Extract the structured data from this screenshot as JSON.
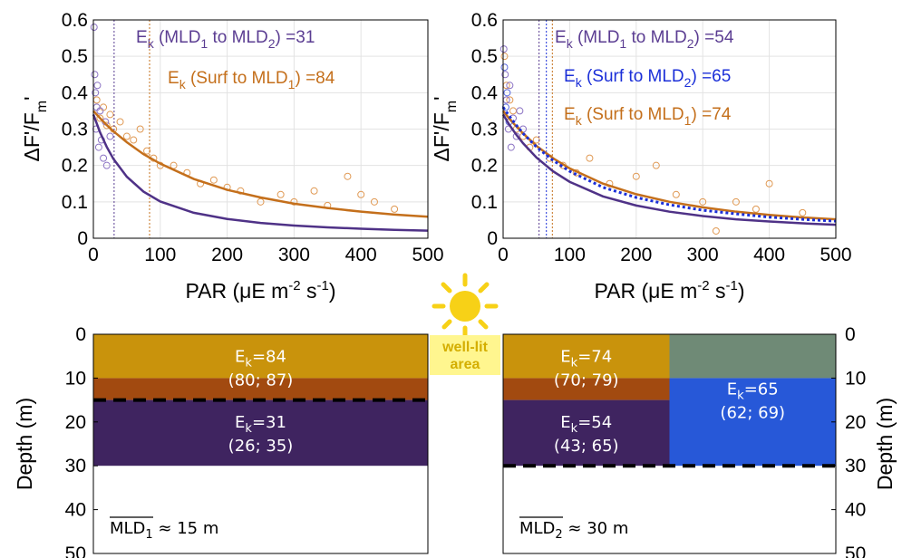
{
  "chart_data": [
    {
      "type": "line",
      "ylabel": [
        "ΔF'/F",
        "m",
        "'"
      ],
      "xlabel": [
        "PAR (μE m",
        "-2",
        " s",
        "-1",
        ")"
      ],
      "xlim": [
        0,
        500
      ],
      "ylim": [
        0,
        0.6
      ],
      "xticks": [
        0,
        100,
        200,
        300,
        400,
        500
      ],
      "yticks": [
        0,
        0.1,
        0.2,
        0.3,
        0.4,
        0.5,
        0.6
      ],
      "grid": true,
      "x": [
        0,
        10,
        20,
        30,
        50,
        75,
        100,
        150,
        200,
        250,
        300,
        350,
        400,
        450,
        500
      ],
      "series": [
        {
          "color": "#c46f1b",
          "dash": false,
          "values": [
            0.35,
            0.33,
            0.311,
            0.294,
            0.264,
            0.231,
            0.205,
            0.163,
            0.133,
            0.112,
            0.095,
            0.083,
            0.073,
            0.065,
            0.059
          ]
        },
        {
          "color": "#4f3287",
          "dash": false,
          "values": [
            0.34,
            0.291,
            0.251,
            0.218,
            0.169,
            0.128,
            0.101,
            0.07,
            0.053,
            0.042,
            0.035,
            0.03,
            0.026,
            0.023,
            0.021
          ]
        }
      ],
      "scatter": [
        {
          "color": "#e09a55",
          "x": [
            5,
            10,
            15,
            20,
            25,
            30,
            40,
            50,
            60,
            70,
            80,
            90,
            100,
            120,
            140,
            160,
            180,
            200,
            220,
            250,
            280,
            300,
            330,
            350,
            380,
            400,
            420,
            450
          ],
          "values": [
            0.38,
            0.33,
            0.36,
            0.31,
            0.34,
            0.3,
            0.32,
            0.28,
            0.27,
            0.3,
            0.24,
            0.22,
            0.2,
            0.2,
            0.18,
            0.15,
            0.16,
            0.14,
            0.13,
            0.1,
            0.12,
            0.1,
            0.13,
            0.09,
            0.17,
            0.12,
            0.1,
            0.08
          ]
        },
        {
          "color": "#8c74c4",
          "x": [
            1,
            2,
            3,
            4,
            5,
            6,
            8,
            10,
            12,
            15,
            18,
            20,
            25
          ],
          "values": [
            0.58,
            0.45,
            0.4,
            0.3,
            0.36,
            0.42,
            0.25,
            0.35,
            0.27,
            0.22,
            0.32,
            0.2,
            0.28
          ]
        }
      ],
      "annotations": [
        {
          "text": [
            "E",
            "k",
            " (MLD",
            "1",
            " to MLD",
            "2",
            ") ="
          ],
          "value": 31,
          "color": "#5b3d92"
        },
        {
          "text": [
            "E",
            "k",
            " (Surf to MLD",
            "1",
            ") ="
          ],
          "value": 84,
          "color": "#c46f1b"
        }
      ]
    },
    {
      "type": "line",
      "ylabel": [
        "ΔF'/F",
        "m",
        "'"
      ],
      "xlabel": [
        "PAR (μE m",
        "-2",
        " s",
        "-1",
        ")"
      ],
      "xlim": [
        0,
        500
      ],
      "ylim": [
        0,
        0.6
      ],
      "xticks": [
        0,
        100,
        200,
        300,
        400,
        500
      ],
      "yticks": [
        0,
        0.1,
        0.2,
        0.3,
        0.4,
        0.5,
        0.6
      ],
      "grid": true,
      "x": [
        0,
        10,
        20,
        30,
        50,
        75,
        100,
        150,
        200,
        250,
        300,
        350,
        400,
        450,
        500
      ],
      "series": [
        {
          "color": "#c46f1b",
          "dash": false,
          "values": [
            0.35,
            0.327,
            0.307,
            0.288,
            0.254,
            0.22,
            0.192,
            0.15,
            0.121,
            0.1,
            0.085,
            0.073,
            0.064,
            0.057,
            0.052
          ]
        },
        {
          "color": "#4f3287",
          "dash": false,
          "values": [
            0.34,
            0.31,
            0.284,
            0.261,
            0.222,
            0.184,
            0.155,
            0.115,
            0.09,
            0.073,
            0.061,
            0.052,
            0.046,
            0.041,
            0.037
          ]
        },
        {
          "color": "#1b2fd8",
          "dash": true,
          "values": [
            0.36,
            0.334,
            0.31,
            0.288,
            0.251,
            0.214,
            0.184,
            0.14,
            0.112,
            0.092,
            0.077,
            0.067,
            0.058,
            0.052,
            0.047
          ]
        }
      ],
      "scatter": [
        {
          "color": "#e09a55",
          "x": [
            2,
            5,
            10,
            15,
            20,
            30,
            40,
            50,
            70,
            90,
            110,
            130,
            160,
            200,
            230,
            260,
            300,
            320,
            350,
            380,
            400,
            450
          ],
          "values": [
            0.5,
            0.42,
            0.38,
            0.35,
            0.3,
            0.28,
            0.25,
            0.27,
            0.22,
            0.2,
            0.18,
            0.22,
            0.15,
            0.17,
            0.2,
            0.12,
            0.1,
            0.02,
            0.1,
            0.08,
            0.15,
            0.07
          ]
        },
        {
          "color": "#8c74c4",
          "x": [
            1,
            3,
            5,
            8,
            10,
            12,
            15,
            20,
            25,
            30
          ],
          "values": [
            0.52,
            0.45,
            0.38,
            0.3,
            0.42,
            0.25,
            0.33,
            0.28,
            0.35,
            0.3
          ]
        },
        {
          "color": "#5a6ae0",
          "x": [
            2,
            4,
            6,
            9
          ],
          "values": [
            0.47,
            0.36,
            0.4,
            0.32
          ]
        }
      ],
      "annotations": [
        {
          "text": [
            "E",
            "k",
            " (MLD",
            "1",
            " to MLD",
            "2",
            ") ="
          ],
          "value": 54,
          "color": "#5b3d92"
        },
        {
          "text": [
            "E",
            "k",
            " (Surf to MLD",
            "2",
            ") ="
          ],
          "value": 65,
          "color": "#1b2fd8"
        },
        {
          "text": [
            "E",
            "k",
            " (Surf to MLD",
            "1",
            ") ="
          ],
          "value": 74,
          "color": "#c46f1b"
        }
      ]
    }
  ],
  "depth_panels": [
    {
      "axis_label": "Depth (m)",
      "axis_side": "left",
      "ylim": [
        0,
        50
      ],
      "yticks": [
        0,
        10,
        20,
        30,
        40,
        50
      ],
      "mld": 15,
      "mld_label": [
        "MLD",
        "1",
        " ≈ 15 m"
      ],
      "columns": [
        {
          "zones": [
            {
              "bands": [
                {
                  "top": 0,
                  "bottom": 10,
                  "color": "#c9930c"
                },
                {
                  "top": 10,
                  "bottom": 15,
                  "color": "#a24a10"
                }
              ],
              "label": [
                "E",
                "k",
                "=84"
              ],
              "ci": "(80; 87)"
            },
            {
              "bands": [
                {
                  "top": 15,
                  "bottom": 30,
                  "color": "#3f2460"
                }
              ],
              "label": [
                "E",
                "k",
                "=31"
              ],
              "ci": "(26; 35)"
            }
          ]
        }
      ]
    },
    {
      "axis_label": "Depth (m)",
      "axis_side": "right",
      "ylim": [
        0,
        50
      ],
      "yticks": [
        0,
        10,
        20,
        30,
        40,
        50
      ],
      "mld": 30,
      "mld_label": [
        "MLD",
        "2",
        " ≈ 30 m"
      ],
      "columns": [
        {
          "zones": [
            {
              "bands": [
                {
                  "top": 0,
                  "bottom": 10,
                  "color": "#c9930c"
                },
                {
                  "top": 10,
                  "bottom": 15,
                  "color": "#a24a10"
                }
              ],
              "label": [
                "E",
                "k",
                "=74"
              ],
              "ci": "(70; 79)"
            },
            {
              "bands": [
                {
                  "top": 15,
                  "bottom": 30,
                  "color": "#3f2460"
                }
              ],
              "label": [
                "E",
                "k",
                "=54"
              ],
              "ci": "(43; 65)"
            }
          ]
        },
        {
          "zones": [
            {
              "bands": [
                {
                  "top": 0,
                  "bottom": 10,
                  "color": "#6f8a76"
                },
                {
                  "top": 10,
                  "bottom": 30,
                  "color": "#2758d8"
                }
              ],
              "label": [
                "E",
                "k",
                "=65"
              ],
              "ci": "(62; 69)"
            }
          ]
        }
      ]
    }
  ],
  "sun_label": [
    "well-lit",
    "area"
  ]
}
